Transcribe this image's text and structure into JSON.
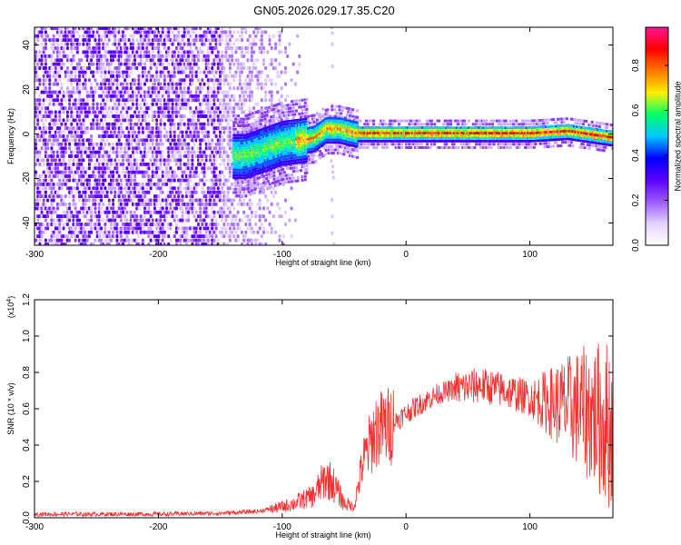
{
  "title": "GN05.2026.029.17.35.C20",
  "colors": {
    "snr_line": "#ee3333",
    "axis": "#000000",
    "background": "#ffffff"
  },
  "chart_data": [
    {
      "type": "heatmap",
      "xlabel": "Height of straight line (km)",
      "ylabel": "Frequency (Hz)",
      "xlim": [
        -300,
        167
      ],
      "ylim": [
        -50,
        48
      ],
      "x_ticks": [
        -300,
        -200,
        -100,
        0,
        100
      ],
      "y_ticks": [
        -40,
        -20,
        0,
        20,
        40
      ],
      "colorbar": {
        "label": "Normalized spectral amplitude",
        "range": [
          0,
          0.97
        ],
        "ticks": [
          "0.0",
          "0.2",
          "0.4",
          "0.6",
          "0.8"
        ],
        "colormap": [
          "#ffffff",
          "#e4d2ff",
          "#9b59ff",
          "#5a00ff",
          "#0000ff",
          "#00c8ff",
          "#00ff66",
          "#ffee00",
          "#ff7700",
          "#ff0000",
          "#ff1493"
        ]
      },
      "ridge": [
        {
          "x": -130,
          "y": -10
        },
        {
          "x": -115,
          "y": -7
        },
        {
          "x": -100,
          "y": -4
        },
        {
          "x": -85,
          "y": -3
        },
        {
          "x": -75,
          "y": -2
        },
        {
          "x": -65,
          "y": 2
        },
        {
          "x": -55,
          "y": 2
        },
        {
          "x": -40,
          "y": 0
        },
        {
          "x": 0,
          "y": 0
        },
        {
          "x": 60,
          "y": 0
        },
        {
          "x": 100,
          "y": 0
        },
        {
          "x": 130,
          "y": 1
        },
        {
          "x": 167,
          "y": -2
        }
      ]
    },
    {
      "type": "line",
      "xlabel": "Height of straight line (km)",
      "ylabel": "SNR (10 * v/v)",
      "y_multiplier": "(x10",
      "y_multiplier_exp": "4",
      "y_multiplier_close": ")",
      "xlim": [
        -300,
        167
      ],
      "ylim": [
        0,
        1.2
      ],
      "x_ticks": [
        -300,
        -200,
        -100,
        0,
        100
      ],
      "y_ticks": [
        "0.0",
        "0.2",
        "0.4",
        "0.6",
        "0.8",
        "1.0",
        "1.2"
      ],
      "series": [
        {
          "envelope": [
            {
              "x": -300,
              "y": 0.02
            },
            {
              "x": -200,
              "y": 0.02
            },
            {
              "x": -150,
              "y": 0.025
            },
            {
              "x": -120,
              "y": 0.035
            },
            {
              "x": -100,
              "y": 0.06
            },
            {
              "x": -90,
              "y": 0.08
            },
            {
              "x": -75,
              "y": 0.12
            },
            {
              "x": -65,
              "y": 0.22
            },
            {
              "x": -60,
              "y": 0.2
            },
            {
              "x": -50,
              "y": 0.08
            },
            {
              "x": -42,
              "y": 0.06
            },
            {
              "x": -35,
              "y": 0.3
            },
            {
              "x": -25,
              "y": 0.48
            },
            {
              "x": -15,
              "y": 0.5
            },
            {
              "x": -5,
              "y": 0.55
            },
            {
              "x": 10,
              "y": 0.62
            },
            {
              "x": 25,
              "y": 0.68
            },
            {
              "x": 40,
              "y": 0.71
            },
            {
              "x": 60,
              "y": 0.73
            },
            {
              "x": 80,
              "y": 0.7
            },
            {
              "x": 100,
              "y": 0.66
            },
            {
              "x": 120,
              "y": 0.63
            },
            {
              "x": 140,
              "y": 0.6
            },
            {
              "x": 155,
              "y": 0.55
            },
            {
              "x": 167,
              "y": 0.5
            }
          ]
        }
      ]
    }
  ]
}
